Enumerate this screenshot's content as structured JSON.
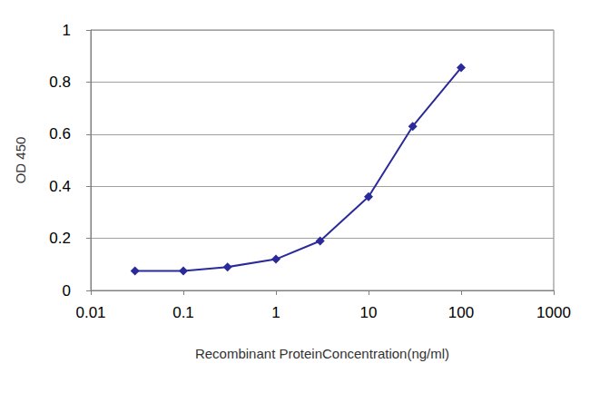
{
  "chart_data": {
    "type": "line",
    "x_label": "Recombinant ProteinConcentration(ng/ml)",
    "y_label": "OD 450",
    "x": [
      0.03,
      0.1,
      0.3,
      1,
      3,
      10,
      30,
      100
    ],
    "values": [
      0.075,
      0.075,
      0.09,
      0.12,
      0.19,
      0.36,
      0.63,
      0.855
    ],
    "color": "#2a2a9a",
    "marker": "diamond",
    "log": "x",
    "xlim": [
      0.01,
      1000
    ],
    "xticks": [
      0.01,
      0.1,
      1,
      10,
      100,
      1000
    ],
    "ylim": [
      0,
      1
    ],
    "yticks": [
      0,
      0.2,
      0.4,
      0.6,
      0.8,
      1
    ],
    "grid": true
  }
}
